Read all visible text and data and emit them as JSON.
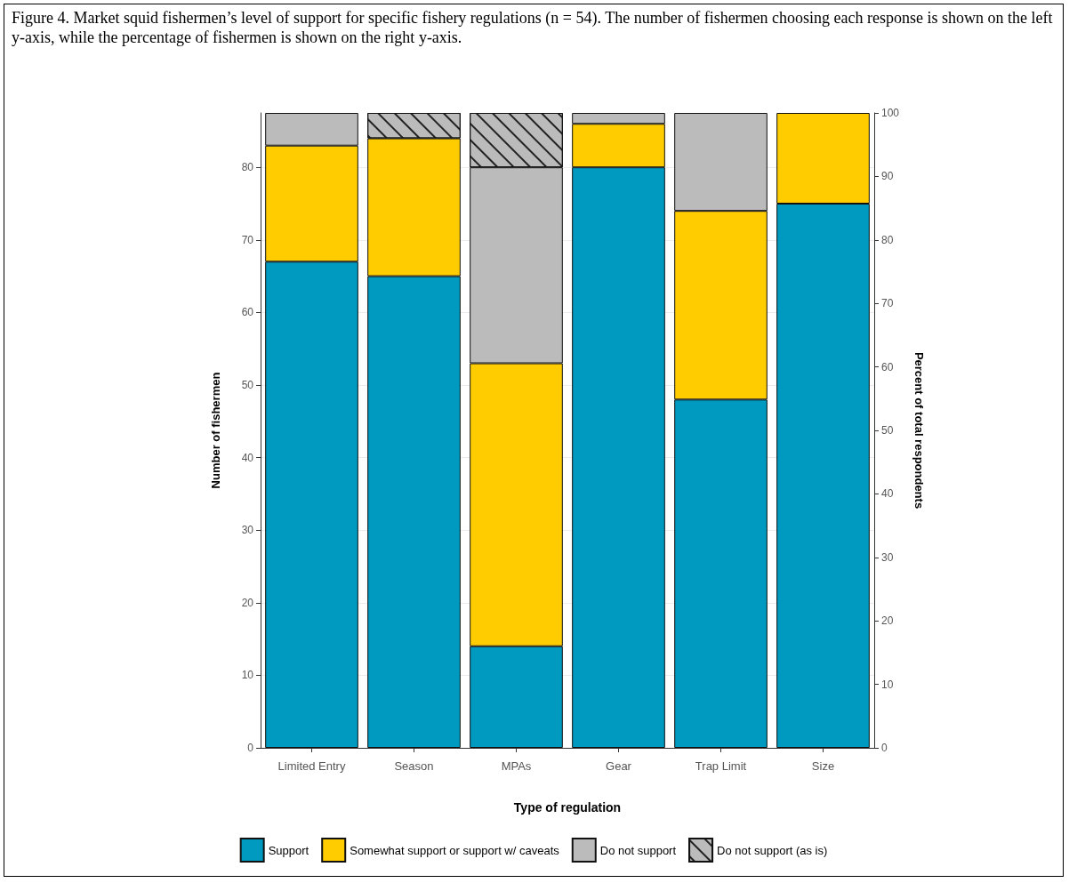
{
  "chart_data": {
    "type": "bar",
    "stacked": true,
    "title": "Figure 4. Market squid fishermen’s level of support for specific fishery regulations (n = 54). The number of fishermen choosing each response is shown on the left y-axis, while the percentage of fishermen is shown on the right y-axis.",
    "xlabel": "Type of regulation",
    "ylabel": "Number of fishermen",
    "y2label": "Percent of total respondents",
    "categories": [
      "Limited Entry",
      "Season",
      "MPAs",
      "Gear",
      "Trap Limit",
      "Size"
    ],
    "series": [
      {
        "name": "Support",
        "color": "#0099c0",
        "values": [
          67,
          65,
          14,
          80,
          48,
          75
        ]
      },
      {
        "name": "Somewhat support or support w/ caveats",
        "color": "#ffcc00",
        "values": [
          16,
          19,
          39,
          6,
          26,
          12.5
        ]
      },
      {
        "name": "Do not support",
        "color": "#bbbbbb",
        "values": [
          4.5,
          null,
          27,
          1.5,
          13.5,
          null
        ]
      },
      {
        "name": "Do not support (as is)",
        "color": "#bbbbbb",
        "values": [
          null,
          3.5,
          7.5,
          null,
          null,
          null
        ]
      }
    ],
    "ylim": [
      0,
      87.5
    ],
    "yticks": [
      0,
      10,
      20,
      30,
      40,
      50,
      60,
      70,
      80
    ],
    "y2lim": [
      0,
      100
    ],
    "y2ticks": [
      0,
      10,
      20,
      30,
      40,
      50,
      60,
      70,
      80,
      90,
      100
    ],
    "grid": "y",
    "legend": "bottom"
  }
}
